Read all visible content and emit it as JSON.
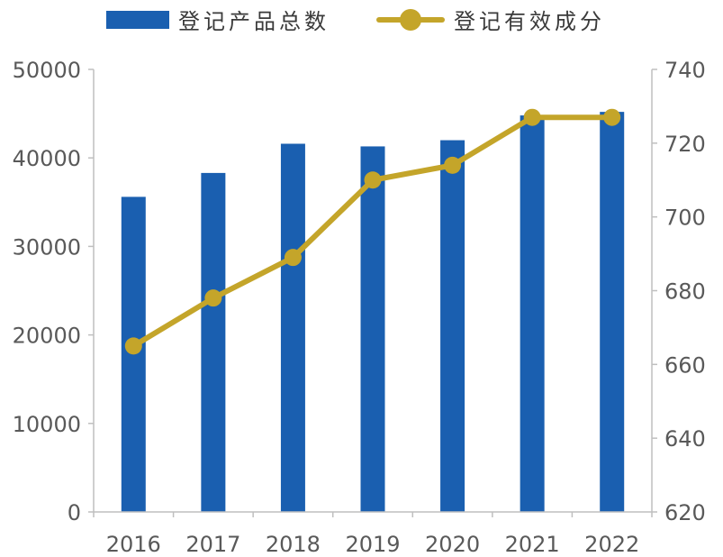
{
  "chart_data": {
    "type": "bar",
    "title": "",
    "categories": [
      "2016",
      "2017",
      "2018",
      "2019",
      "2020",
      "2021",
      "2022"
    ],
    "series": [
      {
        "name": "登记产品总数",
        "type": "bar",
        "axis": "left",
        "color": "#1a5fb0",
        "values": [
          35600,
          38300,
          41600,
          41300,
          42000,
          44800,
          45200
        ]
      },
      {
        "name": "登记有效成分",
        "type": "line",
        "axis": "right",
        "color": "#c4a52a",
        "values": [
          665,
          678,
          689,
          710,
          714,
          727,
          727
        ]
      }
    ],
    "y_left": {
      "min": 0,
      "max": 50000,
      "ticks": [
        "0",
        "10000",
        "20000",
        "30000",
        "40000",
        "50000"
      ]
    },
    "y_right": {
      "min": 620,
      "max": 740,
      "ticks": [
        "620",
        "640",
        "660",
        "680",
        "700",
        "720",
        "740"
      ]
    },
    "grid": false,
    "legend_position": "top"
  }
}
